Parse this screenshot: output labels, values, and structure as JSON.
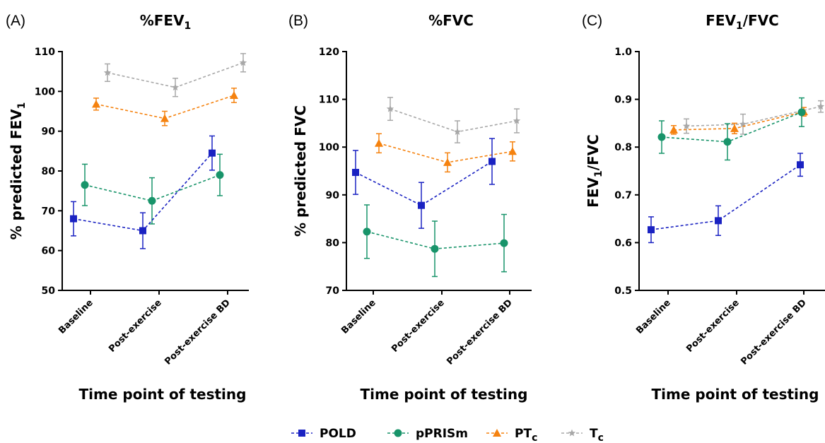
{
  "legend": [
    {
      "name": "POLD",
      "color": "#1a22c2",
      "marker": "square"
    },
    {
      "name": "pPRISm",
      "color": "#18946a",
      "marker": "circle"
    },
    {
      "name": "PT",
      "sub": "c",
      "color": "#f5820f",
      "marker": "triangle"
    },
    {
      "name": "T",
      "sub": "c",
      "color": "#a8a8a8",
      "marker": "star"
    }
  ],
  "chart_data": [
    {
      "type": "line",
      "panel_label": "(A)",
      "title": {
        "main": "%FEV",
        "sub": "1",
        "tail": ""
      },
      "ylabel": {
        "main": "% predicted FEV",
        "sub": "1",
        "tail": ""
      },
      "xlabel": "Time point of testing",
      "categories": [
        "Baseline",
        "Post-exercise",
        "Post-exercise BD"
      ],
      "ylim": [
        50,
        110
      ],
      "yticks": [
        "50",
        "60",
        "70",
        "80",
        "90",
        "100",
        "110"
      ],
      "series": [
        {
          "name": "POLD",
          "values": [
            68.0,
            65.0,
            84.5
          ],
          "err": [
            4.3,
            4.5,
            4.3
          ]
        },
        {
          "name": "pPRISm",
          "values": [
            76.5,
            72.5,
            79.0
          ],
          "err": [
            5.2,
            5.8,
            5.2
          ]
        },
        {
          "name": "PTc",
          "values": [
            96.8,
            93.2,
            99.0
          ],
          "err": [
            1.5,
            1.8,
            1.8
          ]
        },
        {
          "name": "Tc",
          "values": [
            104.7,
            101.0,
            107.2
          ],
          "err": [
            2.2,
            2.3,
            2.3
          ]
        }
      ]
    },
    {
      "type": "line",
      "panel_label": "(B)",
      "title": {
        "main": "%FVC",
        "sub": "",
        "tail": ""
      },
      "ylabel": {
        "main": "% predicted FVC",
        "sub": "",
        "tail": ""
      },
      "xlabel": "Time point of testing",
      "categories": [
        "Baseline",
        "Post-exercise",
        "Post-exercise BD"
      ],
      "ylim": [
        70,
        120
      ],
      "yticks": [
        "70",
        "80",
        "90",
        "100",
        "110",
        "120"
      ],
      "series": [
        {
          "name": "POLD",
          "values": [
            94.7,
            87.8,
            97.0
          ],
          "err": [
            4.6,
            4.8,
            4.8
          ]
        },
        {
          "name": "pPRISm",
          "values": [
            82.3,
            78.7,
            79.9
          ],
          "err": [
            5.6,
            5.8,
            6.0
          ]
        },
        {
          "name": "PTc",
          "values": [
            100.8,
            96.8,
            99.1
          ],
          "err": [
            2.0,
            2.0,
            2.0
          ]
        },
        {
          "name": "Tc",
          "values": [
            108.0,
            103.2,
            105.5
          ],
          "err": [
            2.4,
            2.3,
            2.5
          ]
        }
      ]
    },
    {
      "type": "line",
      "panel_label": "(C)",
      "title": {
        "main": "FEV",
        "sub": "1",
        "tail": "/FVC"
      },
      "ylabel": {
        "main": "FEV",
        "sub": "1",
        "tail": "/FVC"
      },
      "xlabel": "Time point of testing",
      "categories": [
        "Baseline",
        "Post-exercise",
        "Post-exercise BD"
      ],
      "ylim": [
        0.5,
        1.0
      ],
      "yticks": [
        "0.5",
        "0.6",
        "0.7",
        "0.8",
        "0.9",
        "1.0"
      ],
      "series": [
        {
          "name": "POLD",
          "values": [
            0.627,
            0.646,
            0.763
          ],
          "err": [
            0.027,
            0.031,
            0.024
          ]
        },
        {
          "name": "pPRISm",
          "values": [
            0.821,
            0.811,
            0.873
          ],
          "err": [
            0.034,
            0.038,
            0.03
          ]
        },
        {
          "name": "PTc",
          "values": [
            0.836,
            0.839,
            0.874
          ],
          "err": [
            0.009,
            0.011,
            0.009
          ]
        },
        {
          "name": "Tc",
          "values": [
            0.844,
            0.848,
            0.885
          ],
          "err": [
            0.015,
            0.021,
            0.012
          ]
        }
      ]
    }
  ]
}
